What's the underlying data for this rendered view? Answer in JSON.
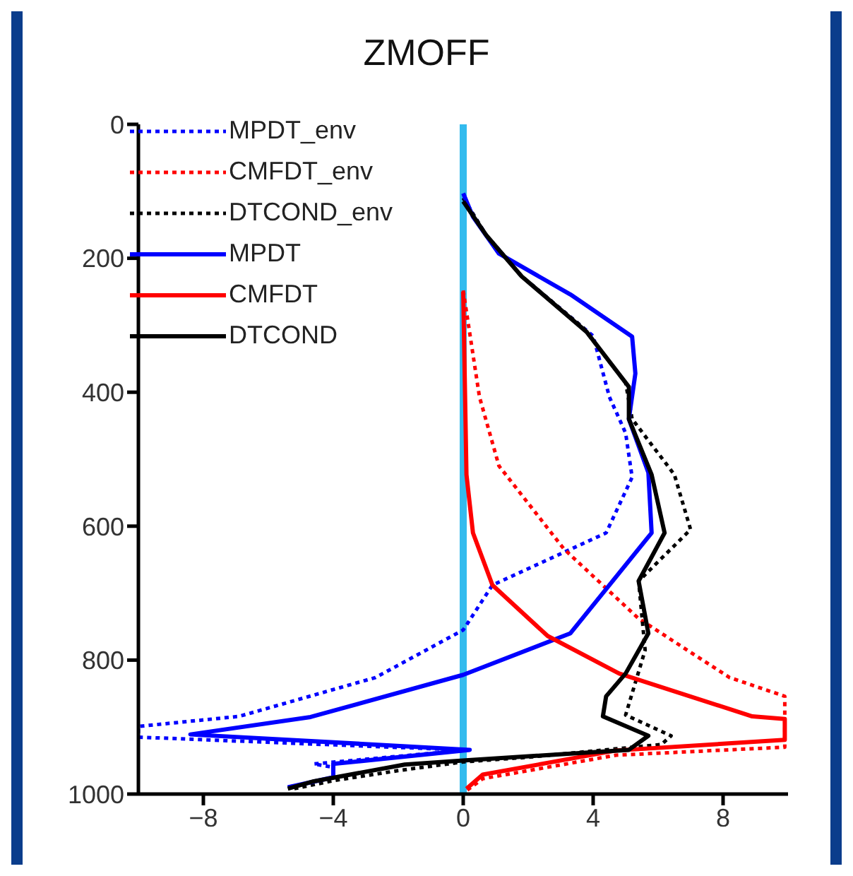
{
  "chart_data": {
    "type": "line",
    "title": "ZMOFF",
    "xlim": [
      -10,
      10
    ],
    "xticks": [
      -8,
      -4,
      0,
      4,
      8
    ],
    "ylim": [
      1000,
      0
    ],
    "yticks": [
      0,
      200,
      400,
      600,
      800,
      1000
    ],
    "legend": "top left",
    "marker": "none",
    "ref_lines": [
      {
        "axis": "x",
        "value": 0,
        "color": "#33bbee"
      }
    ],
    "series": [
      {
        "name": "MPDT_env",
        "color": "#0000ff",
        "line_style": "dotted",
        "x": [
          0,
          0.7,
          1.8,
          4.0,
          4.5,
          5.0,
          5.2,
          4.4,
          0.9,
          0,
          -2.7,
          -6.9,
          -10,
          -10,
          -0.1,
          0.2,
          -4.6,
          -4,
          -4,
          -5.4
        ],
        "values": [
          110,
          165,
          227,
          316,
          407,
          461,
          527,
          610,
          688,
          755,
          826,
          884,
          899,
          915,
          934,
          934,
          955,
          960,
          975,
          990
        ]
      },
      {
        "name": "CMFDT_env",
        "color": "#ff0000",
        "line_style": "dotted",
        "x": [
          0,
          0.5,
          1.1,
          3.1,
          5.4,
          8.2,
          9.9,
          9.9,
          4.7,
          0.6,
          0.1
        ],
        "values": [
          248,
          407,
          510,
          634,
          738,
          826,
          854,
          930,
          942,
          977,
          995
        ]
      },
      {
        "name": "DTCOND_env",
        "color": "#000000",
        "line_style": "dotted",
        "x": [
          0,
          0.7,
          1.8,
          3.7,
          5.0,
          5.2,
          6.5,
          7.0,
          5.4,
          5.6,
          5.0,
          6.4,
          6.1,
          2,
          0,
          -2,
          -4,
          -5.2
        ],
        "values": [
          110,
          165,
          227,
          304,
          386,
          440,
          523,
          605,
          682,
          785,
          882,
          913,
          926,
          945,
          952,
          965,
          980,
          992
        ]
      },
      {
        "name": "MPDT",
        "color": "#0000ff",
        "line_style": "solid",
        "x": [
          0,
          0.3,
          1.1,
          3.3,
          5.2,
          5.3,
          5.1,
          5.7,
          5.8,
          3.3,
          0,
          -4.7,
          -8.4,
          0.2,
          -4,
          -4,
          -5.4
        ],
        "values": [
          103,
          138,
          193,
          254,
          317,
          372,
          440,
          520,
          610,
          760,
          822,
          885,
          911,
          934,
          955,
          975,
          990
        ]
      },
      {
        "name": "CMFDT",
        "color": "#ff0000",
        "line_style": "solid",
        "x": [
          0,
          0.1,
          0.3,
          0.9,
          2.6,
          4.8,
          8.9,
          9.9,
          9.9,
          4.7,
          0.6,
          0.1
        ],
        "values": [
          250,
          523,
          610,
          688,
          764,
          820,
          884,
          888,
          919,
          935,
          971,
          992
        ]
      },
      {
        "name": "DTCOND",
        "color": "#000000",
        "line_style": "solid",
        "x": [
          0,
          0.7,
          1.8,
          3.8,
          5.1,
          5.1,
          5.8,
          6.2,
          5.4,
          5.7,
          5.0,
          4.4,
          4.3,
          5.7,
          5.1,
          0,
          -1.8,
          -4.6,
          -5.4
        ],
        "values": [
          115,
          165,
          227,
          310,
          392,
          440,
          523,
          610,
          682,
          760,
          820,
          854,
          884,
          913,
          934,
          950,
          956,
          981,
          992
        ]
      }
    ]
  }
}
